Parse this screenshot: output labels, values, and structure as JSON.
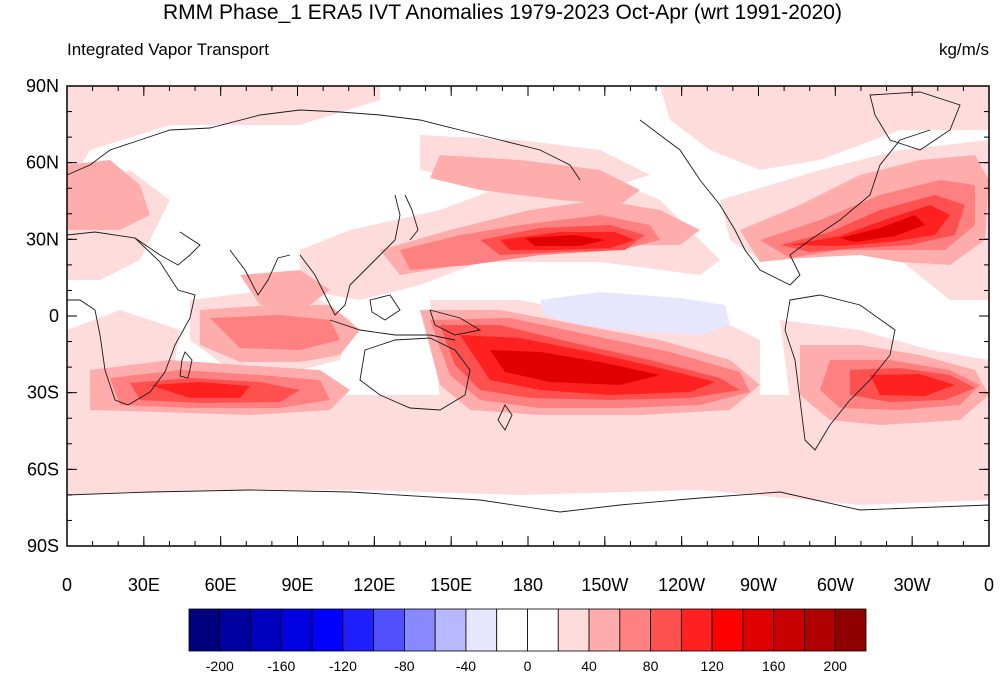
{
  "title": "RMM Phase_1 ERA5 IVT Anomalies 1979-2023 Oct-Apr (wrt 1991-2020)",
  "left_subtitle": "Integrated Vapor Transport",
  "right_subtitle": "kg/m/s",
  "lat_labels": [
    "90N",
    "60N",
    "30N",
    "0",
    "30S",
    "60S",
    "90S"
  ],
  "lon_labels": [
    "0",
    "30E",
    "60E",
    "90E",
    "120E",
    "150E",
    "180",
    "150W",
    "120W",
    "90W",
    "60W",
    "30W",
    "0"
  ],
  "colorbar": {
    "colors": [
      "#00007f",
      "#0000a0",
      "#0000c0",
      "#0000e0",
      "#0000ff",
      "#2020ff",
      "#5050ff",
      "#8888ff",
      "#b8b8ff",
      "#e6e6ff",
      "#ffffff",
      "#ffffff",
      "#ffdcdc",
      "#ffacac",
      "#ff8080",
      "#ff5050",
      "#ff2020",
      "#ff0000",
      "#e00000",
      "#c80000",
      "#b00000",
      "#900000"
    ],
    "tick_labels": [
      "-200",
      "-160",
      "-120",
      "-80",
      "-40",
      "0",
      "40",
      "80",
      "120",
      "160",
      "200"
    ],
    "tick_values": [
      -200,
      -160,
      -120,
      -80,
      -40,
      0,
      40,
      80,
      120,
      160,
      200
    ]
  },
  "map_colors": {
    "land_line": "#1a1a1a",
    "weak_positive": "#ffdcdc",
    "moderate_positive": "#ffacac",
    "strong_positive": "#ff8080",
    "stronger_positive": "#ff5050",
    "intense_positive": "#ff2020",
    "peak_positive": "#e00000",
    "weak_negative": "#e6e6ff"
  }
}
